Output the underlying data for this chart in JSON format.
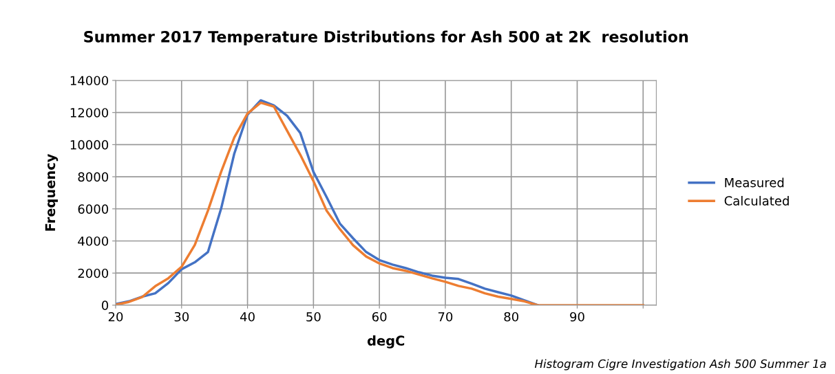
{
  "chart_data": {
    "type": "line",
    "title": "Summer 2017 Temperature Distributions for Ash 500 at 2K  resolution",
    "xlabel": "degC",
    "ylabel": "Frequency",
    "annotations": [
      "Histogram Cigre Investigation Ash 500 Summer 1a"
    ],
    "x": [
      20,
      22,
      24,
      26,
      28,
      30,
      32,
      34,
      36,
      38,
      40,
      42,
      44,
      46,
      48,
      50,
      52,
      54,
      56,
      58,
      60,
      62,
      64,
      66,
      68,
      70,
      72,
      74,
      76,
      78,
      80,
      82,
      84,
      86,
      88,
      90,
      92,
      94,
      96,
      98,
      100
    ],
    "series": [
      {
        "name": "Measured",
        "color": "#4472c4",
        "values": [
          70,
          240,
          530,
          740,
          1380,
          2240,
          2670,
          3310,
          6020,
          9450,
          11870,
          12760,
          12440,
          11800,
          10730,
          8300,
          6730,
          5090,
          4170,
          3310,
          2810,
          2530,
          2310,
          2050,
          1840,
          1710,
          1630,
          1340,
          1030,
          810,
          600,
          300,
          0,
          null,
          null,
          null,
          null,
          null,
          null,
          null,
          null
        ]
      },
      {
        "name": "Calculated",
        "color": "#ed7d31",
        "values": [
          30,
          200,
          500,
          1180,
          1680,
          2390,
          3750,
          5890,
          8310,
          10450,
          11940,
          12610,
          12370,
          10870,
          9370,
          7730,
          5880,
          4740,
          3740,
          3030,
          2600,
          2310,
          2140,
          1910,
          1670,
          1460,
          1200,
          1030,
          740,
          530,
          390,
          240,
          0,
          0,
          0,
          0,
          0,
          0,
          0,
          0,
          0
        ]
      }
    ],
    "xlim": [
      20,
      102
    ],
    "xticks": [
      20,
      30,
      40,
      50,
      60,
      70,
      80,
      90,
      {
        "value": 100,
        "label": null
      }
    ],
    "ylim": [
      0,
      14000
    ],
    "yticks": [
      0,
      2000,
      4000,
      6000,
      8000,
      10000,
      12000,
      14000
    ],
    "grid": true,
    "legend": "right",
    "marker": "none",
    "line_style": "solid"
  }
}
